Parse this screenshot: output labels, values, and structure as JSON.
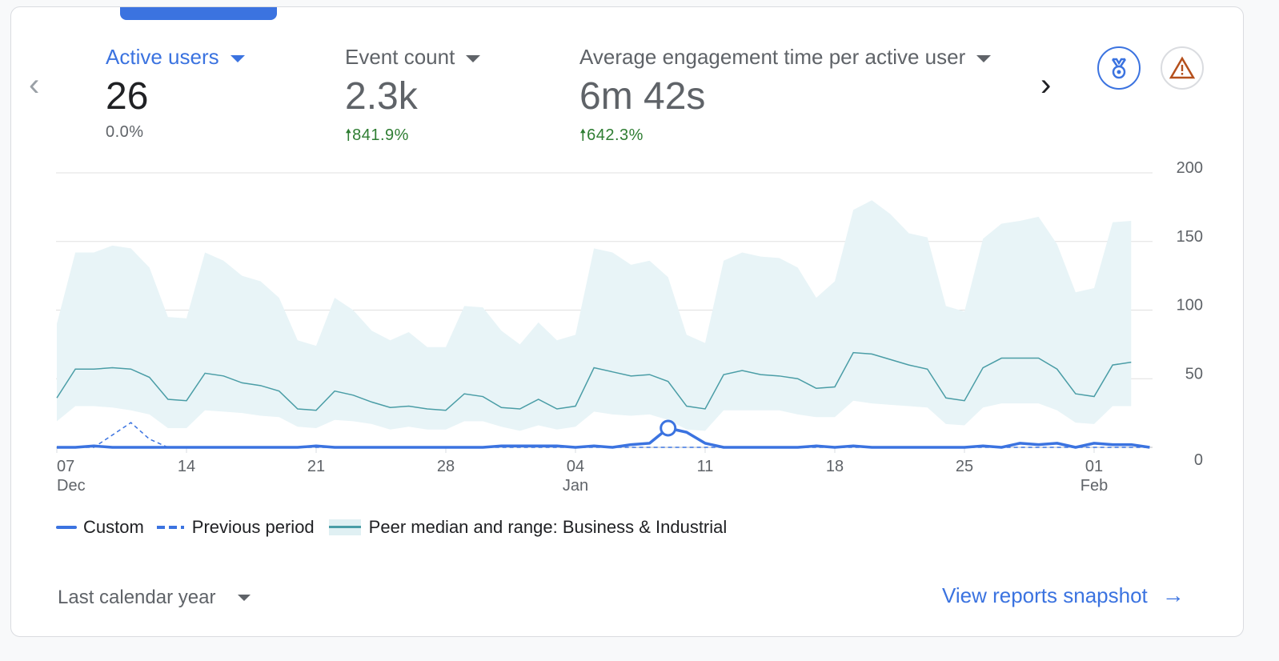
{
  "metrics": [
    {
      "label": "Active users",
      "value": "26",
      "change": "0.0%",
      "trend": "flat",
      "selected": true
    },
    {
      "label": "Event count",
      "value": "2.3k",
      "change": "841.9%",
      "trend": "up",
      "selected": false
    },
    {
      "label": "Average engagement time per active user",
      "value": "6m 42s",
      "change": "642.3%",
      "trend": "up",
      "selected": false
    }
  ],
  "icons": {
    "prev": "chevron-left-icon",
    "next": "chevron-right-icon",
    "medal": "medal-icon",
    "warning": "warning-icon",
    "trend_up": "arrow-up-icon"
  },
  "colors": {
    "accent": "#3b73e0",
    "peer_line": "#4a9da6",
    "peer_band": "#e8f4f7",
    "positive": "#2e7d32"
  },
  "legend": {
    "custom": "Custom",
    "previous": "Previous period",
    "peer": "Peer median and range: Business & Industrial"
  },
  "footer": {
    "date_range": "Last calendar year",
    "link": "View reports snapshot"
  },
  "chart_data": {
    "type": "line",
    "x_start": "Dec 07",
    "x_end": "Feb 04",
    "x_ticks": [
      {
        "day": "07",
        "month": "Dec"
      },
      {
        "day": "14",
        "month": ""
      },
      {
        "day": "21",
        "month": ""
      },
      {
        "day": "28",
        "month": ""
      },
      {
        "day": "04",
        "month": "Jan"
      },
      {
        "day": "11",
        "month": ""
      },
      {
        "day": "18",
        "month": ""
      },
      {
        "day": "25",
        "month": ""
      },
      {
        "day": "01",
        "month": "Feb"
      }
    ],
    "x_tick_day_offsets": [
      0,
      7,
      14,
      21,
      28,
      35,
      42,
      49,
      56
    ],
    "y_ticks": [
      "0",
      "50",
      "100",
      "150",
      "200"
    ],
    "ylim": [
      0,
      200
    ],
    "grid": true,
    "legend_position": "bottom-left",
    "series": [
      {
        "name": "Custom",
        "style": "solid",
        "values": [
          0,
          0,
          1,
          0,
          0,
          0,
          0,
          0,
          0,
          0,
          0,
          0,
          0,
          0,
          1,
          0,
          0,
          0,
          0,
          0,
          0,
          0,
          0,
          0,
          1,
          1,
          1,
          1,
          0,
          1,
          0,
          2,
          3,
          14,
          11,
          3,
          0,
          0,
          0,
          0,
          0,
          1,
          0,
          1,
          0,
          0,
          0,
          0,
          0,
          0,
          1,
          0,
          3,
          2,
          3,
          0,
          3,
          2,
          2,
          0
        ]
      },
      {
        "name": "Previous period",
        "style": "dashed",
        "values": [
          0,
          0,
          0,
          9,
          18,
          6,
          0,
          0,
          0,
          0,
          0,
          0,
          0,
          0,
          0,
          0,
          0,
          0,
          0,
          0,
          0,
          0,
          0,
          0,
          0,
          0,
          0,
          0,
          0,
          0,
          0,
          0,
          0,
          0,
          0,
          0,
          0,
          0,
          0,
          0,
          0,
          0,
          0,
          0,
          0,
          0,
          0,
          0,
          0,
          0,
          0,
          0,
          0,
          0,
          0,
          0,
          0,
          0,
          0,
          0
        ]
      },
      {
        "name": "Peer median",
        "style": "line",
        "values": [
          36,
          57,
          57,
          58,
          57,
          51,
          35,
          34,
          54,
          52,
          47,
          45,
          41,
          28,
          27,
          41,
          38,
          33,
          29,
          30,
          28,
          27,
          39,
          37,
          29,
          28,
          35,
          28,
          30,
          58,
          55,
          52,
          53,
          48,
          30,
          28,
          53,
          56,
          53,
          52,
          50,
          43,
          44,
          69,
          68,
          64,
          60,
          57,
          36,
          34,
          58,
          65,
          65,
          65,
          57,
          39,
          37,
          60,
          62
        ]
      },
      {
        "name": "Peer range max",
        "values": [
          90,
          142,
          142,
          147,
          145,
          131,
          95,
          94,
          142,
          136,
          125,
          121,
          109,
          78,
          74,
          109,
          100,
          85,
          78,
          84,
          73,
          73,
          103,
          102,
          85,
          75,
          91,
          78,
          82,
          145,
          142,
          133,
          136,
          124,
          82,
          76,
          136,
          142,
          139,
          138,
          131,
          109,
          121,
          173,
          180,
          170,
          156,
          153,
          103,
          99,
          152,
          163,
          165,
          168,
          148,
          113,
          116,
          164,
          165
        ]
      },
      {
        "name": "Peer range min",
        "values": [
          19,
          30,
          30,
          29,
          27,
          24,
          14,
          14,
          27,
          26,
          25,
          23,
          22,
          15,
          14,
          20,
          19,
          17,
          13,
          15,
          13,
          13,
          19,
          19,
          15,
          12,
          16,
          13,
          15,
          26,
          24,
          23,
          24,
          20,
          13,
          12,
          27,
          27,
          27,
          27,
          24,
          22,
          22,
          34,
          32,
          31,
          30,
          29,
          17,
          16,
          29,
          32,
          32,
          32,
          27,
          18,
          17,
          30,
          30
        ]
      }
    ],
    "highlight_index": 33
  }
}
